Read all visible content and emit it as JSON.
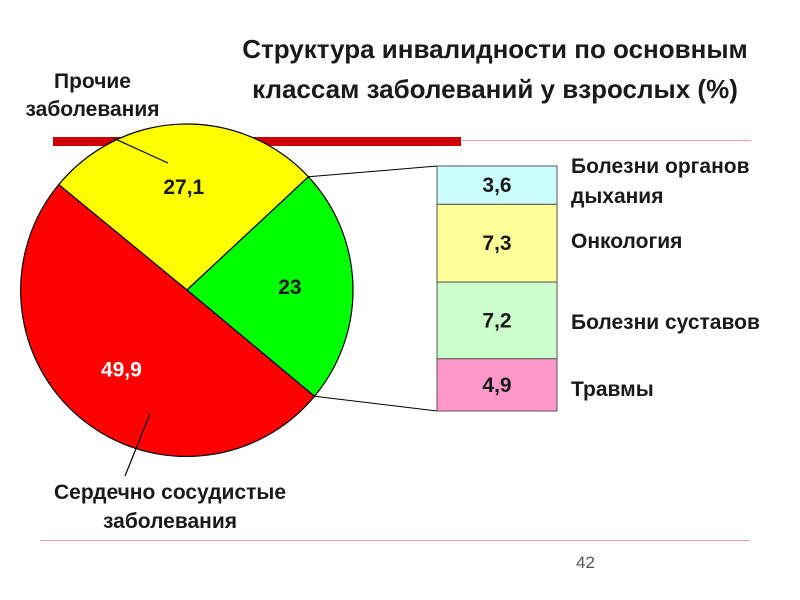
{
  "page": {
    "title_line1": "Структура инвалидности по основным",
    "title_line2": "классам заболеваний у взрослых (%)",
    "page_number": "42",
    "accent_color": "#cc0000",
    "rule_color": "#e8a0a0"
  },
  "chart_data": [
    {
      "type": "pie",
      "title": "",
      "slices": [
        {
          "label": "Сердечно сосудистые заболевания",
          "value": 49.9,
          "value_text": "49,9",
          "color": "#ff0000",
          "value_text_color": "#ffffff"
        },
        {
          "label": "Прочие заболевания",
          "value": 27.1,
          "value_text": "27,1",
          "color": "#ffff00",
          "value_text_color": "#1a1a1a"
        },
        {
          "label": "",
          "value": 23,
          "value_text": "23",
          "color": "#00ff00",
          "value_text_color": "#1a1a1a"
        }
      ]
    },
    {
      "type": "bar",
      "orientation": "stacked-vertical",
      "segments": [
        {
          "label": "Болезни органов дыхания",
          "value": 3.6,
          "value_text": "3,6",
          "color": "#ccffff"
        },
        {
          "label": "Онкология",
          "value": 7.3,
          "value_text": "7,3",
          "color": "#ffff99"
        },
        {
          "label": "Болезни суставов",
          "value": 7.2,
          "value_text": "7,2",
          "color": "#ccffcc"
        },
        {
          "label": "Травмы",
          "value": 4.9,
          "value_text": "4,9",
          "color": "#ff99cc"
        }
      ]
    }
  ],
  "labels": {
    "other_line1": "Прочие",
    "other_line2": "заболевания",
    "cardio_line1": "Сердечно сосудистые",
    "cardio_line2": "заболевания",
    "resp_line1": "Болезни органов",
    "resp_line2": "дыхания",
    "onco": "Онкология",
    "joints": "Болезни суставов",
    "trauma": "Травмы"
  }
}
